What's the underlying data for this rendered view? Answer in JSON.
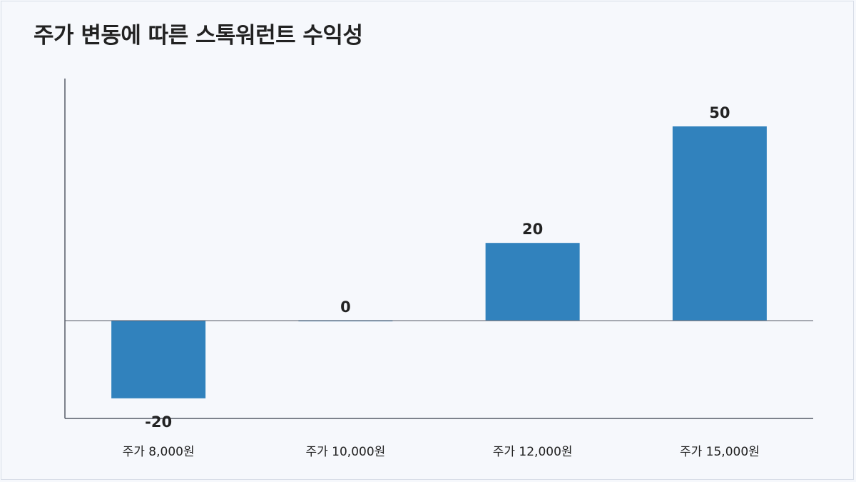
{
  "chart_data": {
    "type": "bar",
    "title": "주가 변동에 따른 스톡워런트 수익성",
    "xlabel": "",
    "ylabel": "",
    "categories": [
      "주가 8,000원",
      "주가 10,000원",
      "주가 12,000원",
      "주가 15,000원"
    ],
    "values": [
      -20,
      0,
      20,
      50
    ],
    "value_labels": [
      "-20",
      "0",
      "20",
      "50"
    ],
    "ylim": [
      -25,
      62
    ],
    "grid": false,
    "legend": "none",
    "bar_color": "#3182bd",
    "axis_color": "#555a66"
  }
}
